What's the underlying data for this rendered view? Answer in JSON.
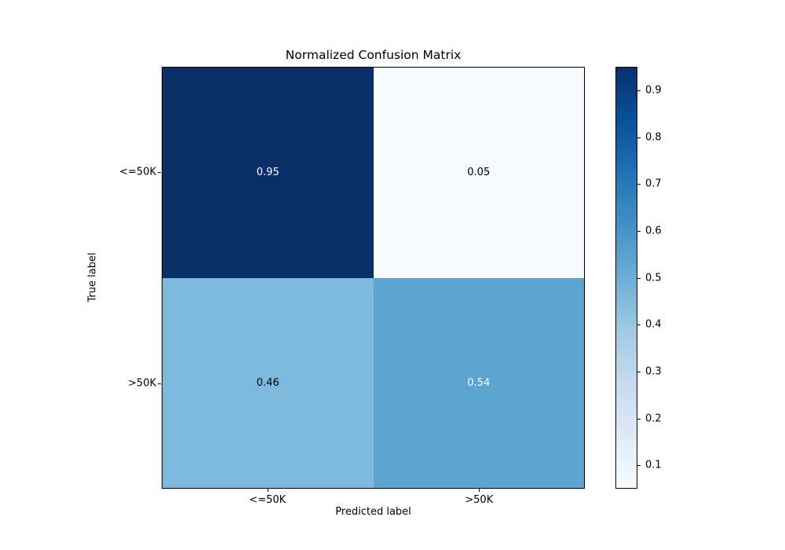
{
  "chart_data": {
    "type": "heatmap",
    "title": "Normalized Confusion Matrix",
    "xlabel": "Predicted label",
    "ylabel": "True label",
    "x_categories": [
      "<=50K",
      ">50K"
    ],
    "y_categories": [
      "<=50K",
      ">50K"
    ],
    "matrix": [
      [
        0.95,
        0.05
      ],
      [
        0.46,
        0.54
      ]
    ],
    "cell_labels": [
      [
        "0.95",
        "0.05"
      ],
      [
        "0.46",
        "0.54"
      ]
    ],
    "cell_colors": [
      [
        "#0a3069",
        "#f6fafe"
      ],
      [
        "#7db9dc",
        "#5ba4d1"
      ]
    ],
    "cell_text_colors": [
      [
        "#ffffff",
        "#000000"
      ],
      [
        "#000000",
        "#ffffff"
      ]
    ],
    "colormap": "Blues",
    "colormap_stops": [
      "#f7fbff",
      "#deebf7",
      "#c6dbef",
      "#9ecae1",
      "#6baed6",
      "#4292c6",
      "#2171b5",
      "#08519c",
      "#08306b"
    ],
    "colorbar_ticks": [
      0.9,
      0.8,
      0.7,
      0.6,
      0.5,
      0.4,
      0.3,
      0.2,
      0.1
    ],
    "vmin": 0.05,
    "vmax": 0.95,
    "legend_position": "right-colorbar",
    "grid": false
  }
}
